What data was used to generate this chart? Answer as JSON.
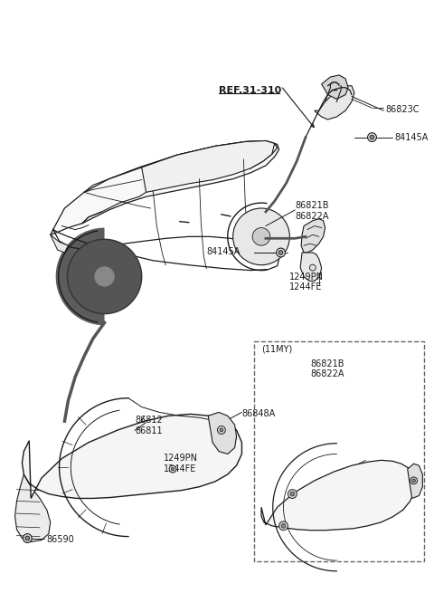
{
  "bg_color": "#ffffff",
  "line_color": "#1a1a1a",
  "text_color": "#1a1a1a",
  "fig_width": 4.8,
  "fig_height": 6.55,
  "dpi": 100,
  "labels": {
    "ref": "REF.31-310",
    "l86823C": "86823C",
    "l84145A_top": "84145A",
    "l86821B_top": "86821B\n86822A",
    "l84145A_mid": "84145A",
    "l1249PN_mid": "1249PN\n1244FE",
    "l86812": "86812\n86811",
    "l86848A": "86848A",
    "l1249PN_bot": "1249PN\n1244FE",
    "l86590": "86590",
    "l11MY": "(11MY)",
    "l86821B_box": "86821B\n86822A"
  }
}
